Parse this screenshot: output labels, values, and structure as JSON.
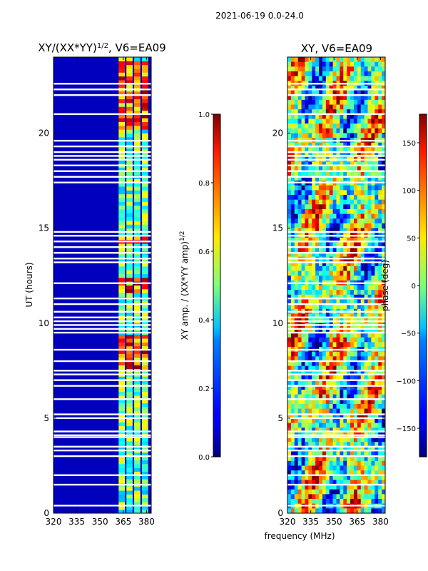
{
  "figure_title": "2021-06-19 0.0-24.0",
  "shared_xlabel": "frequency (MHz)",
  "chart_data": [
    {
      "type": "heatmap",
      "title_main": "XY/(XX*YY)",
      "title_sup": "1/2",
      "title_tail": ", V6=EA09",
      "xlabel": "",
      "ylabel": "UT (hours)",
      "xlim": [
        320,
        383
      ],
      "ylim": [
        0,
        24
      ],
      "xticks": [
        320,
        335,
        350,
        365,
        380
      ],
      "yticks": [
        0,
        5,
        10,
        15,
        20
      ],
      "colormap": "jet",
      "colorbar": {
        "label_main": "XY amp. / (XX*YY amp)",
        "label_sup": "1/2",
        "range": [
          0.0,
          1.0
        ],
        "ticks": [
          0.0,
          0.2,
          0.4,
          0.6,
          0.8,
          1.0
        ],
        "tick_labels": [
          "0.0",
          "0.2",
          "0.4",
          "0.6",
          "0.8",
          "1.0"
        ]
      },
      "flagged_hours": [
        0.4,
        1.5,
        2.0,
        3.0,
        3.3,
        3.5,
        4.0,
        4.1,
        4.3,
        5.0,
        5.2,
        6.0,
        6.7,
        7.0,
        7.3,
        7.5,
        8.0,
        8.6,
        9.5,
        9.7,
        9.9,
        10.1,
        10.3,
        10.6,
        11.0,
        11.3,
        12.1,
        13.2,
        13.4,
        13.7,
        14.0,
        14.3,
        14.6,
        14.8,
        17.4,
        17.7,
        18.0,
        18.3,
        18.6,
        18.8,
        19.0,
        19.3,
        19.6,
        21.0,
        22.0,
        22.3,
        22.6
      ],
      "bright_band_hours": [
        [
          7.6,
          9.4
        ],
        [
          11.6,
          12.4
        ],
        [
          14.2,
          14.7
        ],
        [
          20.3,
          23.8
        ]
      ],
      "active_channel_groups_mhz": [
        [
          362,
          366
        ],
        [
          367,
          371
        ],
        [
          372,
          376
        ],
        [
          377,
          381
        ]
      ]
    },
    {
      "type": "heatmap",
      "title": "XY, V6=EA09",
      "xlabel": "frequency (MHz)",
      "ylabel": "",
      "xlim": [
        320,
        383
      ],
      "ylim": [
        0,
        24
      ],
      "xticks": [
        320,
        335,
        350,
        365,
        380
      ],
      "yticks": [
        0,
        5,
        10,
        15,
        20
      ],
      "colormap": "jet",
      "colorbar": {
        "label": "phase (deg)",
        "range": [
          -180,
          180
        ],
        "ticks": [
          -150,
          -100,
          -50,
          0,
          50,
          100,
          150
        ],
        "tick_labels": [
          "−150",
          "−100",
          "−50",
          "0",
          "50",
          "100",
          "150"
        ]
      },
      "flagged_hours": [
        0.4,
        1.5,
        2.0,
        3.0,
        3.3,
        3.5,
        4.0,
        4.1,
        4.3,
        5.0,
        5.2,
        6.0,
        6.7,
        7.0,
        7.3,
        7.5,
        8.0,
        8.6,
        9.5,
        9.7,
        9.9,
        10.1,
        10.3,
        10.6,
        11.0,
        11.3,
        12.1,
        13.2,
        13.4,
        13.7,
        14.0,
        14.3,
        14.6,
        14.8,
        17.4,
        17.7,
        18.0,
        18.3,
        18.6,
        18.8,
        19.0,
        19.3,
        19.6,
        21.0,
        22.0,
        22.3,
        22.6
      ]
    }
  ]
}
